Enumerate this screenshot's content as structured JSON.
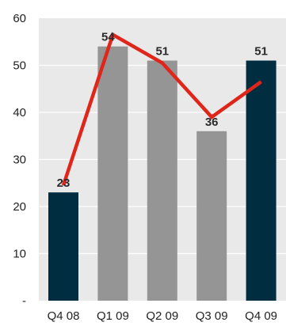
{
  "chart_data": {
    "type": "bar",
    "title": "",
    "xlabel": "",
    "ylabel": "",
    "categories": [
      "Q4 08",
      "Q1 09",
      "Q2 09",
      "Q3 09",
      "Q4 09"
    ],
    "series": [
      {
        "type": "bar",
        "values": [
          23,
          54,
          51,
          36,
          51
        ],
        "colors": [
          "#002d40",
          "#959595",
          "#959595",
          "#959595",
          "#002d40"
        ],
        "data_labels": [
          "23",
          "54",
          "51",
          "36",
          "51"
        ]
      },
      {
        "type": "line",
        "values": [
          24.5,
          56.5,
          50.5,
          39,
          46.5
        ],
        "color": "#e0261b"
      }
    ],
    "ylim": [
      0,
      60
    ],
    "yticks": [
      0,
      10,
      20,
      30,
      40,
      50,
      60
    ],
    "ytick_labels": [
      "-",
      "10",
      "20",
      "30",
      "40",
      "50",
      "60"
    ],
    "grid": true,
    "plot_background": "#e9e9e9",
    "grid_color": "#ffffff",
    "legend": "none"
  }
}
